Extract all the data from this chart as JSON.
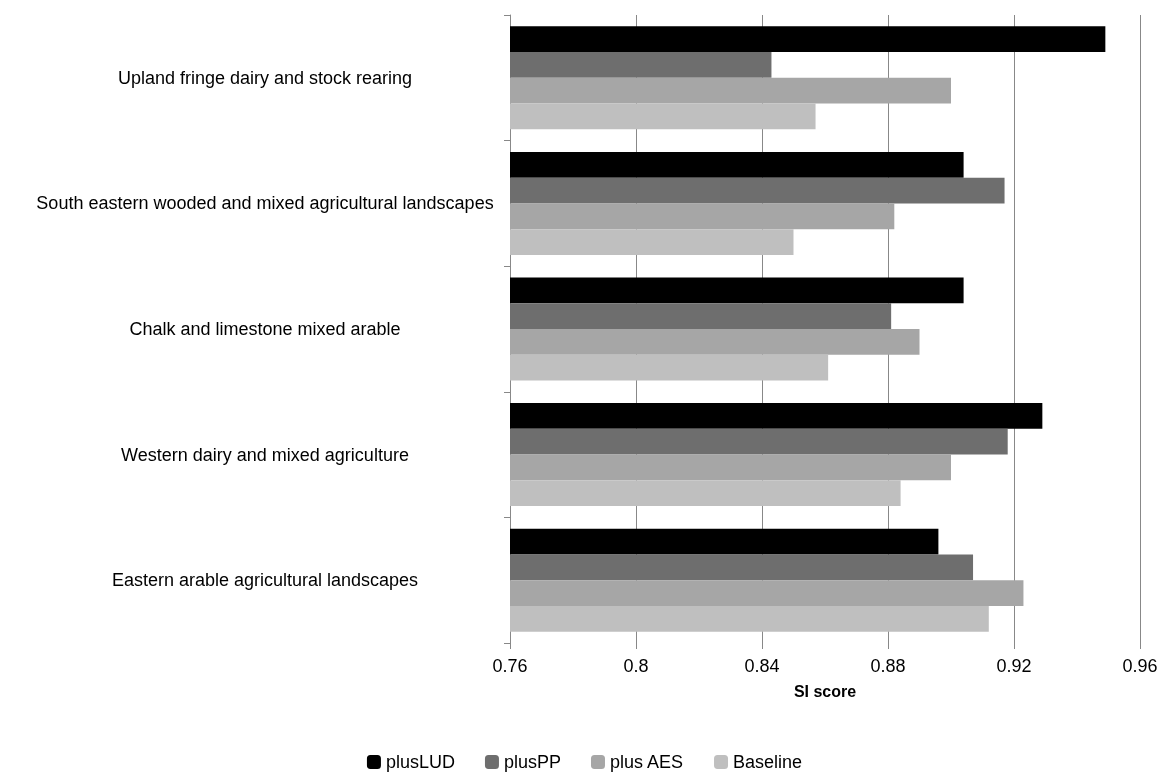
{
  "chart_data": {
    "type": "bar",
    "orientation": "horizontal",
    "xlabel": "SI score",
    "categories": [
      "Upland fringe dairy and stock rearing",
      "South eastern wooded and mixed agricultural landscapes",
      "Chalk and limestone mixed arable",
      "Western dairy and mixed agriculture",
      "Eastern arable agricultural landscapes"
    ],
    "series": [
      {
        "name": "plusLUD",
        "color": "#000000",
        "values": [
          0.949,
          0.904,
          0.904,
          0.929,
          0.896
        ]
      },
      {
        "name": "plusPP",
        "color": "#6e6e6e",
        "values": [
          0.843,
          0.917,
          0.881,
          0.918,
          0.907
        ]
      },
      {
        "name": "plus AES",
        "color": "#a6a6a6",
        "values": [
          0.9,
          0.882,
          0.89,
          0.9,
          0.923
        ]
      },
      {
        "name": "Baseline",
        "color": "#bfbfbf",
        "values": [
          0.857,
          0.85,
          0.861,
          0.884,
          0.912
        ]
      }
    ],
    "xlim": [
      0.76,
      0.96
    ],
    "xticks": [
      0.76,
      0.8,
      0.84,
      0.88,
      0.92,
      0.96
    ],
    "grid": "x",
    "legend": "bottom"
  }
}
